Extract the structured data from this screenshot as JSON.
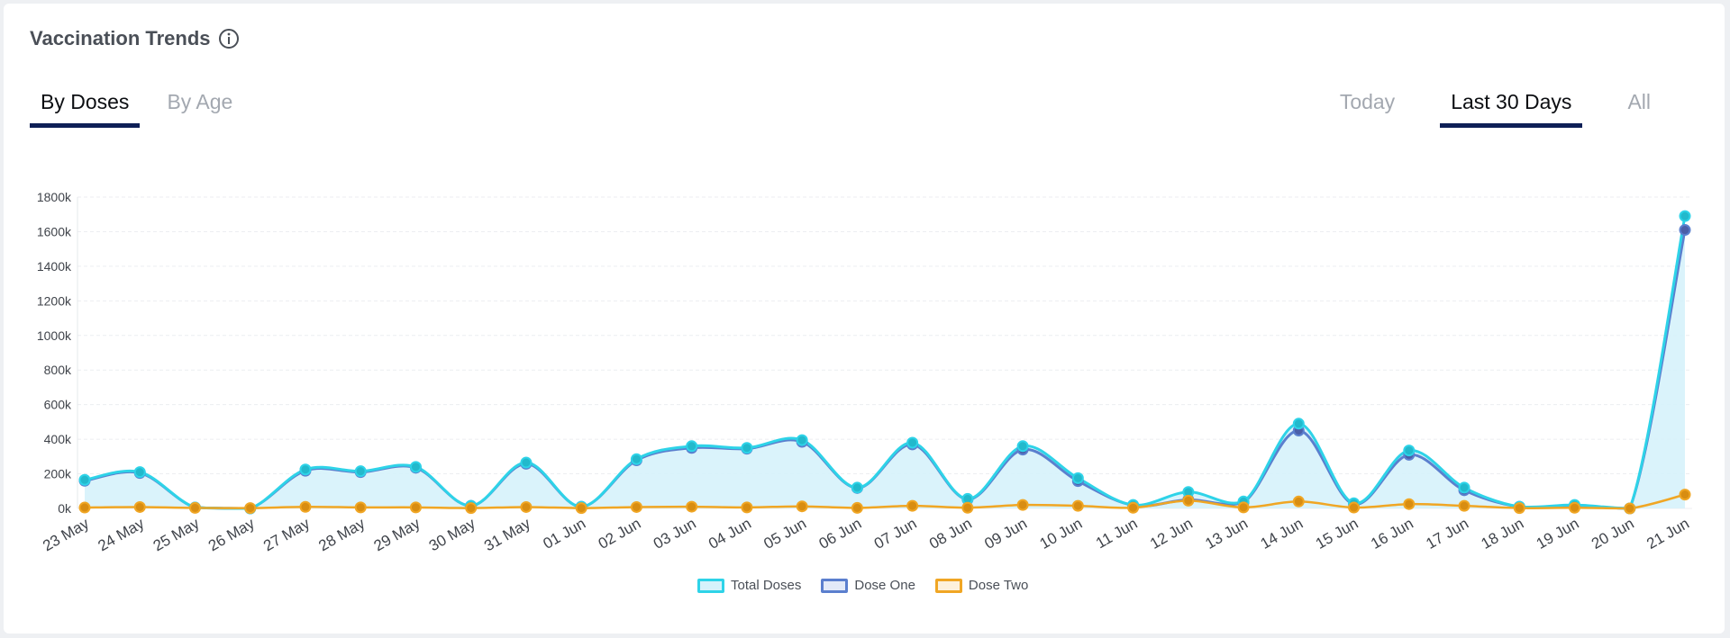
{
  "header": {
    "title": "Vaccination Trends",
    "info_icon": "info-icon"
  },
  "tabs_left": [
    {
      "label": "By Doses",
      "active": true
    },
    {
      "label": "By Age",
      "active": false
    }
  ],
  "tabs_right": [
    {
      "label": "Today",
      "active": false
    },
    {
      "label": "Last 30 Days",
      "active": true
    },
    {
      "label": "All",
      "active": false
    }
  ],
  "colors": {
    "total": "#2ed3e8",
    "dose_one": "#5b7fce",
    "dose_two": "#f0a624",
    "area": "#d6f2fb",
    "tab_underline": "#0e1f56"
  },
  "chart_data": {
    "type": "area",
    "title": "",
    "xlabel": "",
    "ylabel": "",
    "ylim": [
      0,
      1800000
    ],
    "y_ticks": [
      0,
      200000,
      400000,
      600000,
      800000,
      1000000,
      1200000,
      1400000,
      1600000,
      1800000
    ],
    "y_tick_labels": [
      "0k",
      "200k",
      "400k",
      "600k",
      "800k",
      "1000k",
      "1200k",
      "1400k",
      "1600k",
      "1800k"
    ],
    "grid": true,
    "legend_position": "bottom",
    "categories": [
      "23 May",
      "24 May",
      "25 May",
      "26 May",
      "27 May",
      "28 May",
      "29 May",
      "30 May",
      "31 May",
      "01 Jun",
      "02 Jun",
      "03 Jun",
      "04 Jun",
      "05 Jun",
      "06 Jun",
      "07 Jun",
      "08 Jun",
      "09 Jun",
      "10 Jun",
      "11 Jun",
      "12 Jun",
      "13 Jun",
      "14 Jun",
      "15 Jun",
      "16 Jun",
      "17 Jun",
      "18 Jun",
      "19 Jun",
      "20 Jun",
      "21 Jun"
    ],
    "series": [
      {
        "name": "Total Doses",
        "key": "total",
        "values": [
          165000,
          210000,
          5000,
          0,
          225000,
          215000,
          240000,
          15000,
          265000,
          10000,
          285000,
          360000,
          350000,
          395000,
          120000,
          380000,
          55000,
          360000,
          175000,
          20000,
          95000,
          40000,
          490000,
          30000,
          335000,
          120000,
          10000,
          20000,
          0,
          1690000
        ]
      },
      {
        "name": "Dose One",
        "key": "dose_one",
        "values": [
          160000,
          205000,
          5000,
          0,
          218000,
          210000,
          235000,
          15000,
          258000,
          10000,
          278000,
          350000,
          345000,
          385000,
          118000,
          370000,
          52000,
          340000,
          158000,
          18000,
          50000,
          35000,
          450000,
          25000,
          310000,
          105000,
          10000,
          15000,
          0,
          1610000
        ]
      },
      {
        "name": "Dose Two",
        "key": "dose_two",
        "values": [
          5000,
          8000,
          3000,
          2000,
          9000,
          6000,
          6000,
          2000,
          8000,
          2000,
          8000,
          10000,
          6000,
          12000,
          3000,
          15000,
          4000,
          20000,
          15000,
          4000,
          45000,
          6000,
          40000,
          5000,
          25000,
          15000,
          2000,
          4000,
          0,
          80000
        ]
      }
    ]
  }
}
